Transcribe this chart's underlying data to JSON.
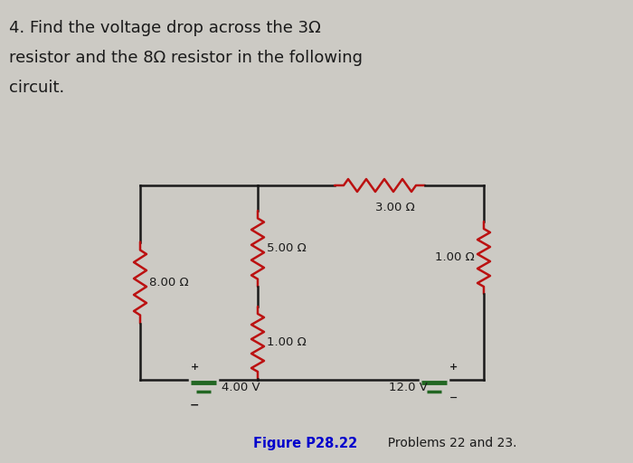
{
  "title_line1": "4. Find the voltage drop across the 3Ω",
  "title_line2": "resistor and the 8Ω resistor in the following",
  "title_line3": "circuit.",
  "figure_caption_bold": "Figure P28.22",
  "figure_caption_normal": "  Problems 22 and 23.",
  "bg_color": "#cccac4",
  "resistor_color": "#bb1111",
  "wire_color": "#1a1a1a",
  "battery_color": "#226622",
  "text_color": "#1a1a1a",
  "caption_bold_color": "#0000cc",
  "labels": {
    "r_mid_upper": "5.00 Ω",
    "r_top": "3.00 Ω",
    "r_mid_lower": "1.00 Ω",
    "r_right": "1.00 Ω",
    "r_left": "8.00 Ω",
    "v_left": "4.00 V",
    "v_right": "12.0 V"
  }
}
